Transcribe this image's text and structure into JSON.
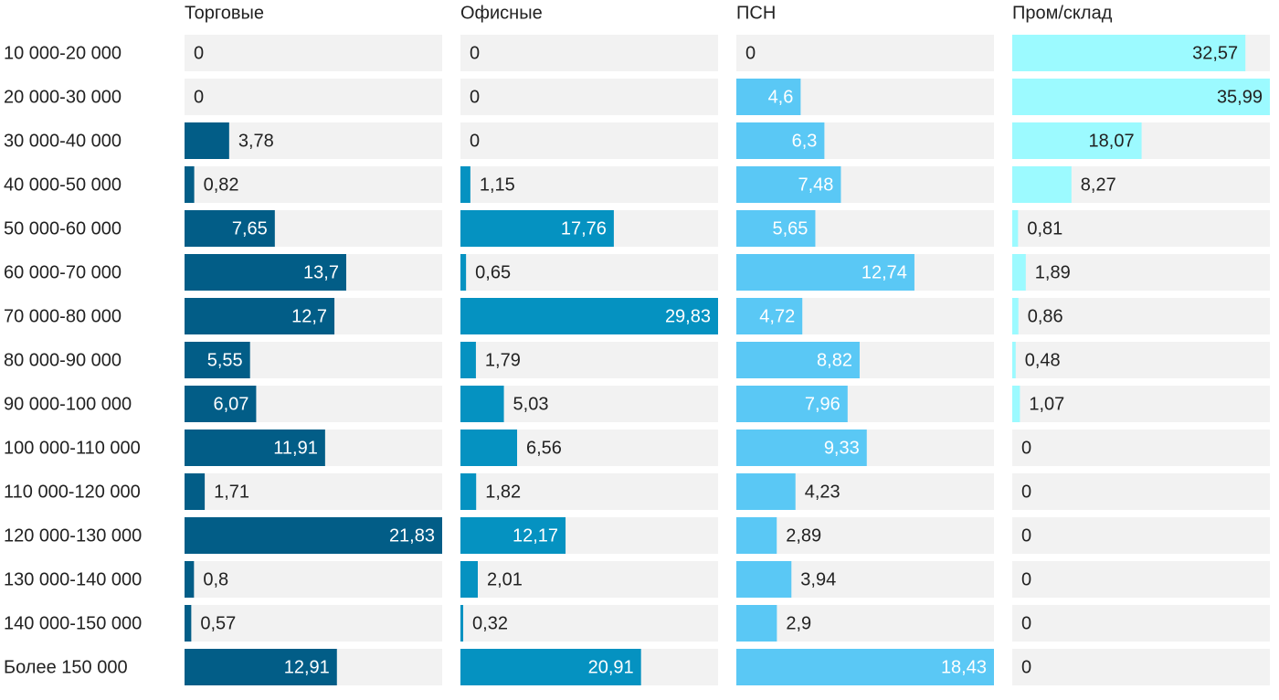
{
  "chart_data": {
    "type": "bar",
    "categories": [
      "10 000-20 000",
      "20 000-30 000",
      "30 000-40 000",
      "40 000-50 000",
      "50 000-60 000",
      "60 000-70 000",
      "70 000-80 000",
      "80 000-90 000",
      "90 000-100 000",
      "100 000-110 000",
      "110 000-120 000",
      "120 000-130 000",
      "130 000-140 000",
      "140 000-150 000",
      "Более 150 000"
    ],
    "series": [
      {
        "name": "Торговые",
        "color": "#025d87",
        "xlim": [
          0,
          21.83
        ],
        "values": [
          0,
          0,
          3.78,
          0.82,
          7.65,
          13.7,
          12.7,
          5.55,
          6.07,
          11.91,
          1.71,
          21.83,
          0.8,
          0.57,
          12.91
        ],
        "value_labels": [
          "0",
          "0",
          "3,78",
          "0,82",
          "7,65",
          "13,7",
          "12,7",
          "5,55",
          "6,07",
          "11,91",
          "1,71",
          "21,83",
          "0,8",
          "0,57",
          "12,91"
        ]
      },
      {
        "name": "Офисные",
        "color": "#0592c1",
        "xlim": [
          0,
          29.83
        ],
        "values": [
          0,
          0,
          0,
          1.15,
          17.76,
          0.65,
          29.83,
          1.79,
          5.03,
          6.56,
          1.82,
          12.17,
          2.01,
          0.32,
          20.91
        ],
        "value_labels": [
          "0",
          "0",
          "0",
          "1,15",
          "17,76",
          "0,65",
          "29,83",
          "1,79",
          "5,03",
          "6,56",
          "1,82",
          "12,17",
          "2,01",
          "0,32",
          "20,91"
        ]
      },
      {
        "name": "ПСН",
        "color": "#5ac8f5",
        "xlim": [
          0,
          18.43
        ],
        "values": [
          0,
          4.6,
          6.3,
          7.48,
          5.65,
          12.74,
          4.72,
          8.82,
          7.96,
          9.33,
          4.23,
          2.89,
          3.94,
          2.9,
          18.43
        ],
        "value_labels": [
          "0",
          "4,6",
          "6,3",
          "7,48",
          "5,65",
          "12,74",
          "4,72",
          "8,82",
          "7,96",
          "9,33",
          "4,23",
          "2,89",
          "3,94",
          "2,9",
          "18,43"
        ]
      },
      {
        "name": "Пром/склад",
        "color": "#9cfaff",
        "xlim": [
          0,
          35.99
        ],
        "values": [
          32.57,
          35.99,
          18.07,
          8.27,
          0.81,
          1.89,
          0.86,
          0.48,
          1.07,
          0,
          0,
          0,
          0,
          0,
          0
        ],
        "value_labels": [
          "32,57",
          "35,99",
          "18,07",
          "8,27",
          "0,81",
          "1,89",
          "0,86",
          "0,48",
          "1,07",
          "0",
          "0",
          "0",
          "0",
          "0",
          "0"
        ]
      }
    ]
  }
}
